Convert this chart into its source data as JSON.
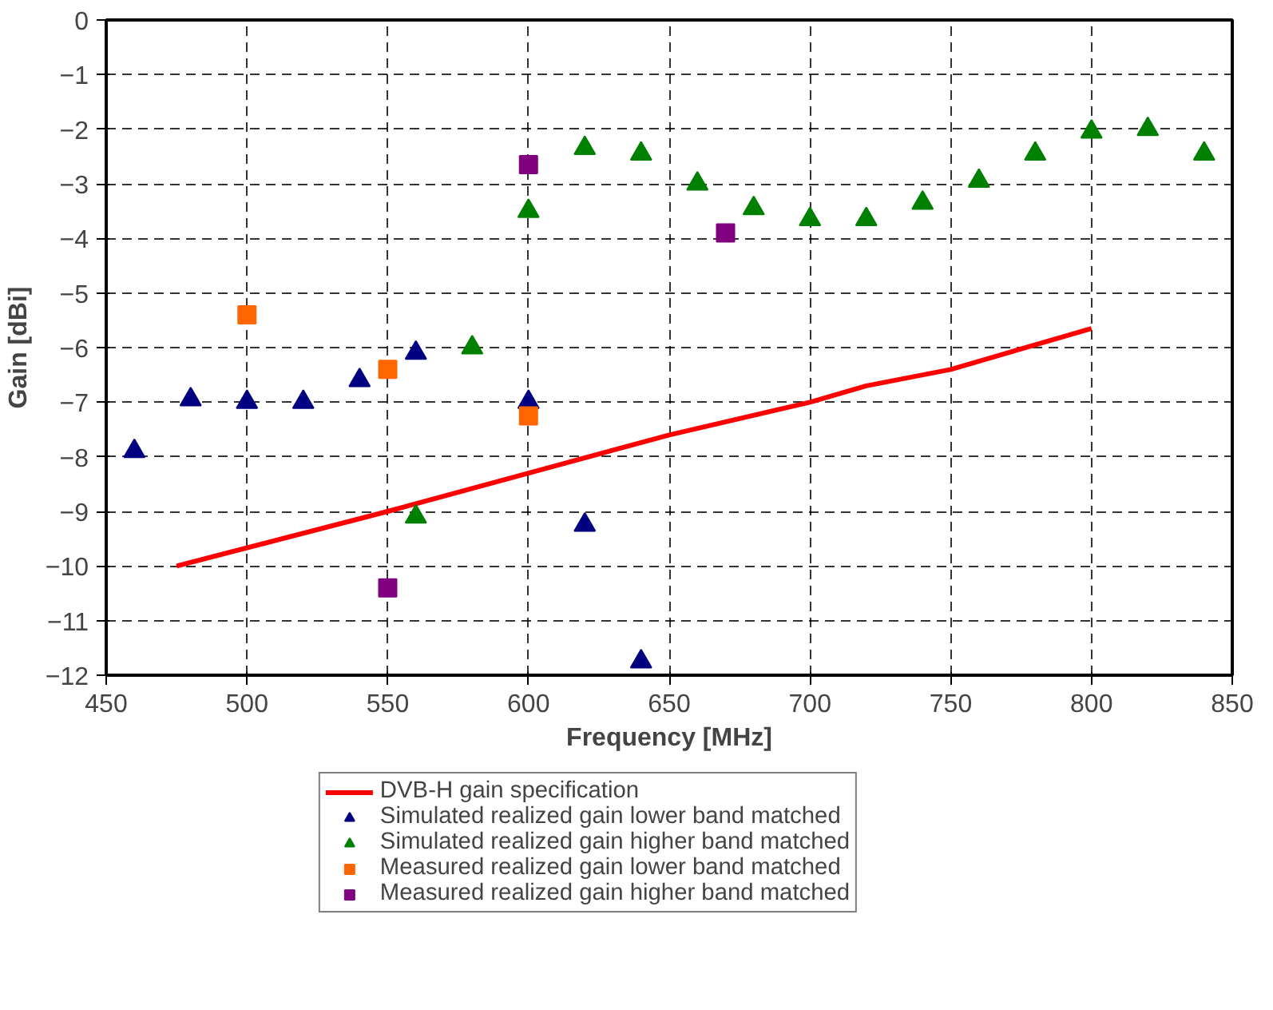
{
  "chart_data": {
    "type": "scatter",
    "xlabel": "Frequency [MHz]",
    "ylabel": "Gain [dBi]",
    "xlim": [
      450,
      850
    ],
    "xticks": [
      450,
      500,
      550,
      600,
      650,
      700,
      750,
      800,
      850
    ],
    "ylim": [
      -12,
      0
    ],
    "yticks": [
      -12,
      -11,
      -10,
      -9,
      -8,
      -7,
      -6,
      -5,
      -4,
      -3,
      -2,
      -1,
      0
    ],
    "grid": true,
    "legend": "bottom",
    "series": [
      {
        "name": "DVB-H gain specification",
        "type": "line",
        "marker": "none",
        "line_style": "solid",
        "color": "#ff0000",
        "x": [
          475,
          550,
          600,
          650,
          700,
          720,
          750,
          800
        ],
        "values": [
          -10,
          -9.0,
          -8.3,
          -7.6,
          -7.0,
          -6.7,
          -6.4,
          -5.65
        ]
      },
      {
        "name": "Simulated realized gain lower band matched",
        "marker": "triangle",
        "color": "#000080",
        "x": [
          460,
          480,
          500,
          520,
          540,
          560,
          580,
          600,
          620,
          640
        ],
        "values": [
          -7.9,
          -6.95,
          -7.0,
          -7.0,
          -6.6,
          -6.1,
          null,
          -7.0,
          -9.25,
          -11.75
        ]
      },
      {
        "name": "Simulated realized gain higher band matched",
        "marker": "triangle",
        "color": "#008000",
        "x": [
          560,
          580,
          600,
          620,
          640,
          660,
          680,
          700,
          720,
          740,
          760,
          780,
          800,
          820,
          840
        ],
        "values": [
          -9.1,
          -6.0,
          -3.5,
          -2.35,
          -2.45,
          -3.0,
          -3.45,
          -3.65,
          -3.65,
          -3.35,
          -2.95,
          -2.45,
          -2.05,
          -2.0,
          -2.45
        ]
      },
      {
        "name": "Measured realized gain lower band matched",
        "marker": "square",
        "color": "#ff6600",
        "x": [
          500,
          550,
          600
        ],
        "values": [
          -5.4,
          -6.4,
          -7.25
        ]
      },
      {
        "name": "Measured realized gain higher band matched",
        "marker": "square",
        "color": "#800080",
        "x": [
          550,
          600,
          670
        ],
        "values": [
          -10.4,
          -2.65,
          -3.9
        ]
      }
    ]
  }
}
